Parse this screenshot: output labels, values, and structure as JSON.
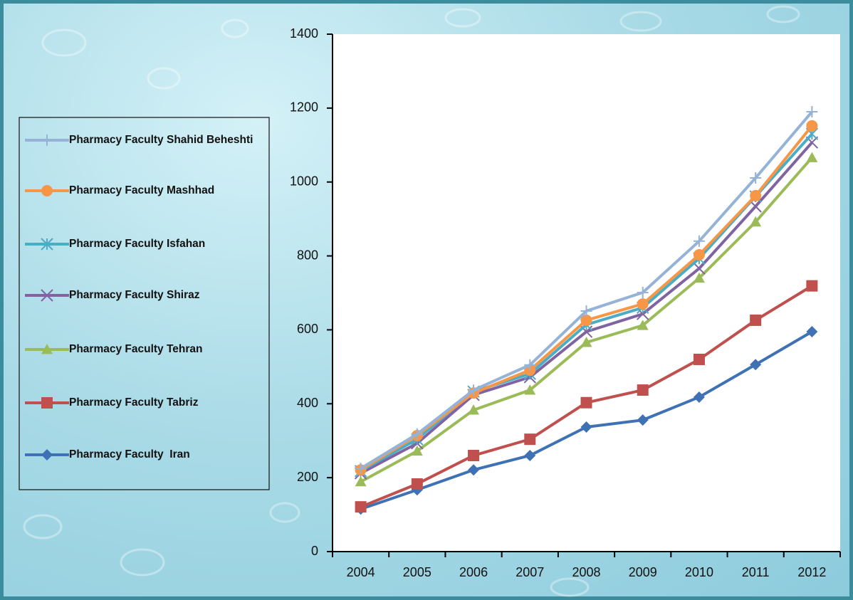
{
  "chart_data": {
    "type": "line",
    "categories": [
      "2004",
      "2005",
      "2006",
      "2007",
      "2008",
      "2009",
      "2010",
      "2011",
      "2012"
    ],
    "ylim": [
      0,
      1400
    ],
    "yticks": [
      0,
      200,
      400,
      600,
      800,
      1000,
      1200,
      1400
    ],
    "legend": "left",
    "series": [
      {
        "name": "Pharmacy Faculty Shahid Beheshti",
        "color": "#95b3d7",
        "marker": "plus",
        "values": [
          225,
          318,
          437,
          505,
          651,
          701,
          840,
          1011,
          1190
        ]
      },
      {
        "name": "Pharmacy Faculty Mashhad",
        "color": "#f79646",
        "marker": "circle",
        "values": [
          221,
          314,
          429,
          491,
          626,
          670,
          803,
          963,
          1152
        ]
      },
      {
        "name": "Pharmacy Faculty Isfahan",
        "color": "#4bacc6",
        "marker": "asterisk",
        "values": [
          218,
          304,
          433,
          481,
          614,
          660,
          793,
          961,
          1130
        ]
      },
      {
        "name": "Pharmacy Faculty Shiraz",
        "color": "#8064a2",
        "marker": "x",
        "values": [
          212,
          293,
          424,
          472,
          595,
          643,
          766,
          934,
          1107
        ]
      },
      {
        "name": "Pharmacy Faculty Tehran",
        "color": "#9bbb59",
        "marker": "triangle",
        "values": [
          189,
          272,
          383,
          437,
          566,
          612,
          740,
          892,
          1066
        ]
      },
      {
        "name": "Pharmacy Faculty Tabriz",
        "color": "#c0504d",
        "marker": "square",
        "values": [
          121,
          183,
          260,
          304,
          403,
          437,
          520,
          626,
          719
        ]
      },
      {
        "name": "Pharmacy Faculty  Iran",
        "color": "#3f72b5",
        "marker": "diamond",
        "values": [
          115,
          167,
          221,
          260,
          337,
          356,
          418,
          506,
          595
        ]
      }
    ]
  }
}
